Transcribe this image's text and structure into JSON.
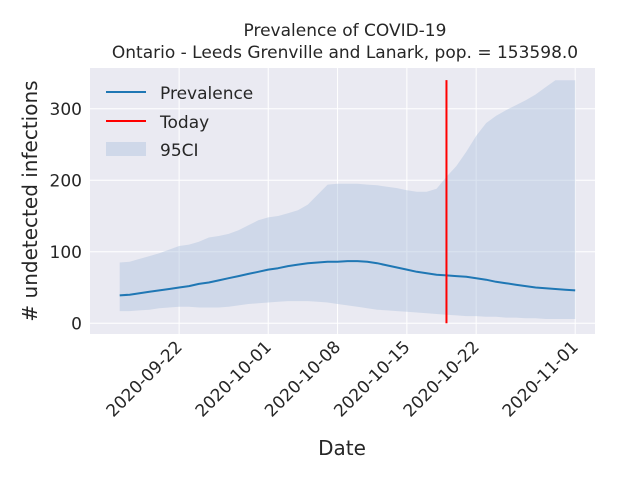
{
  "chart_data": {
    "type": "line",
    "title": "Prevalence of COVID-19",
    "subtitle": "Ontario - Leeds Grenville and Lanark, pop. = 153598.0",
    "xlabel": "Date",
    "ylabel": "# undetected infections",
    "x_ticks": [
      "2020-09-22",
      "2020-10-01",
      "2020-10-08",
      "2020-10-15",
      "2020-10-22",
      "2020-11-01"
    ],
    "y_ticks": [
      0,
      100,
      200,
      300
    ],
    "xlim": [
      "2020-09-13",
      "2020-11-03"
    ],
    "ylim": [
      -15,
      357
    ],
    "grid": true,
    "legend_position": "top-left",
    "legend": [
      "Prevalence",
      "Today",
      "95CI"
    ],
    "series": [
      {
        "name": "Prevalence",
        "color": "#1f77b4",
        "x": [
          "2020-09-16",
          "2020-09-17",
          "2020-09-18",
          "2020-09-19",
          "2020-09-20",
          "2020-09-21",
          "2020-09-22",
          "2020-09-23",
          "2020-09-24",
          "2020-09-25",
          "2020-09-26",
          "2020-09-27",
          "2020-09-28",
          "2020-09-29",
          "2020-09-30",
          "2020-10-01",
          "2020-10-02",
          "2020-10-03",
          "2020-10-04",
          "2020-10-05",
          "2020-10-06",
          "2020-10-07",
          "2020-10-08",
          "2020-10-09",
          "2020-10-10",
          "2020-10-11",
          "2020-10-12",
          "2020-10-13",
          "2020-10-14",
          "2020-10-15",
          "2020-10-16",
          "2020-10-17",
          "2020-10-18",
          "2020-10-19",
          "2020-10-20",
          "2020-10-21",
          "2020-10-22",
          "2020-10-23",
          "2020-10-24",
          "2020-10-25",
          "2020-10-26",
          "2020-10-27",
          "2020-10-28",
          "2020-10-29",
          "2020-10-30",
          "2020-10-31",
          "2020-11-01"
        ],
        "values": [
          39,
          40,
          42,
          44,
          46,
          48,
          50,
          52,
          55,
          57,
          60,
          63,
          66,
          69,
          72,
          75,
          77,
          80,
          82,
          84,
          85,
          86,
          86,
          87,
          87,
          86,
          84,
          81,
          78,
          75,
          72,
          70,
          68,
          67,
          66,
          65,
          63,
          61,
          58,
          56,
          54,
          52,
          50,
          49,
          48,
          47,
          46
        ]
      }
    ],
    "today": {
      "label": "Today",
      "date": "2020-10-19",
      "color": "#ff0000",
      "y_range": [
        0,
        340
      ]
    },
    "band": {
      "name": "95CI",
      "color": "#b0c4de",
      "x": [
        "2020-09-16",
        "2020-09-17",
        "2020-09-18",
        "2020-09-19",
        "2020-09-20",
        "2020-09-21",
        "2020-09-22",
        "2020-09-23",
        "2020-09-24",
        "2020-09-25",
        "2020-09-26",
        "2020-09-27",
        "2020-09-28",
        "2020-09-29",
        "2020-09-30",
        "2020-10-01",
        "2020-10-02",
        "2020-10-03",
        "2020-10-04",
        "2020-10-05",
        "2020-10-06",
        "2020-10-07",
        "2020-10-08",
        "2020-10-09",
        "2020-10-10",
        "2020-10-11",
        "2020-10-12",
        "2020-10-13",
        "2020-10-14",
        "2020-10-15",
        "2020-10-16",
        "2020-10-17",
        "2020-10-18",
        "2020-10-19",
        "2020-10-20",
        "2020-10-21",
        "2020-10-22",
        "2020-10-23",
        "2020-10-24",
        "2020-10-25",
        "2020-10-26",
        "2020-10-27",
        "2020-10-28",
        "2020-10-29",
        "2020-10-30",
        "2020-10-31",
        "2020-11-01"
      ],
      "upper": [
        85,
        86,
        90,
        94,
        98,
        103,
        108,
        110,
        114,
        120,
        122,
        125,
        130,
        137,
        144,
        148,
        150,
        154,
        158,
        166,
        180,
        194,
        195,
        195,
        195,
        194,
        193,
        191,
        189,
        186,
        184,
        184,
        188,
        205,
        220,
        240,
        262,
        280,
        290,
        298,
        305,
        312,
        320,
        330,
        340,
        340,
        340
      ],
      "lower": [
        17,
        17,
        18,
        19,
        21,
        22,
        23,
        23,
        22,
        22,
        22,
        23,
        25,
        27,
        28,
        29,
        30,
        31,
        31,
        31,
        30,
        29,
        27,
        25,
        23,
        21,
        19,
        18,
        17,
        16,
        15,
        14,
        13,
        12,
        11,
        10,
        10,
        9,
        9,
        8,
        8,
        7,
        7,
        6,
        6,
        6,
        6
      ]
    }
  }
}
